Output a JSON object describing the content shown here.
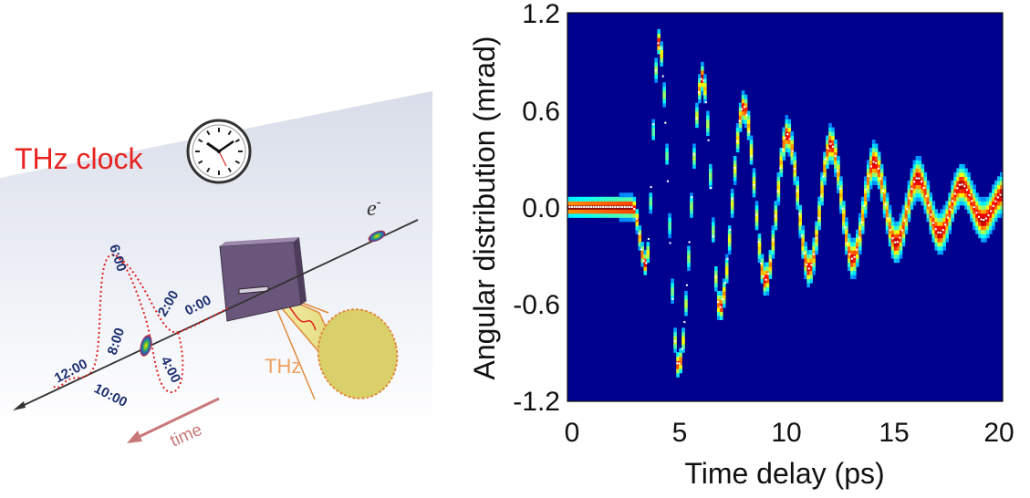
{
  "schematic": {
    "title": "THz clock",
    "electron_label": "e",
    "electron_sup": "-",
    "thz_label": "THz",
    "time_label": "time",
    "clock_times": [
      "0:00",
      "2:00",
      "4:00",
      "6:00",
      "8:00",
      "10:00",
      "12:00"
    ],
    "colors": {
      "title": "#e8231f",
      "thz": "#f0a060",
      "time": "#c9787a",
      "clock_labels": "#1d2f6f",
      "wave": "#e02020"
    }
  },
  "chart_data": {
    "type": "heatmap",
    "title": "",
    "xlabel": "Time delay (ps)",
    "ylabel": "Angular distribution (mrad)",
    "xlim": [
      0,
      20
    ],
    "ylim": [
      -1.2,
      1.2
    ],
    "x_ticks": [
      "0",
      "5",
      "10",
      "15",
      "20"
    ],
    "y_ticks": [
      "1.2",
      "0.6",
      "0.0",
      "-0.6",
      "-1.2"
    ],
    "colormap": "jet",
    "background_color": "#00008f",
    "signal": {
      "flat_until_ps": 3.0,
      "baseline_mrad": 0.0,
      "oscillation_period_ps": 2.0,
      "extrema": [
        {
          "t": 3.6,
          "y": -0.35
        },
        {
          "t": 4.2,
          "y": 1.02
        },
        {
          "t": 5.1,
          "y": -0.98
        },
        {
          "t": 6.2,
          "y": 0.8
        },
        {
          "t": 7.0,
          "y": -0.62
        },
        {
          "t": 8.1,
          "y": 0.62
        },
        {
          "t": 9.1,
          "y": -0.45
        },
        {
          "t": 10.1,
          "y": 0.45
        },
        {
          "t": 11.1,
          "y": -0.38
        },
        {
          "t": 12.1,
          "y": 0.39
        },
        {
          "t": 13.1,
          "y": -0.32
        },
        {
          "t": 14.1,
          "y": 0.28
        },
        {
          "t": 15.1,
          "y": -0.22
        },
        {
          "t": 16.1,
          "y": 0.18
        },
        {
          "t": 17.1,
          "y": -0.16
        },
        {
          "t": 18.1,
          "y": 0.14
        },
        {
          "t": 19.1,
          "y": -0.08
        },
        {
          "t": 20.0,
          "y": 0.08
        }
      ]
    }
  }
}
